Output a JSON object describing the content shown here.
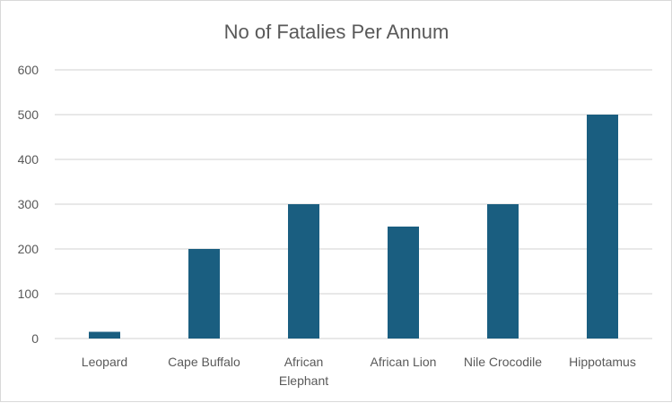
{
  "chart_data": {
    "type": "bar",
    "title": "No of Fatalies Per Annum",
    "xlabel": "",
    "ylabel": "",
    "categories": [
      "Leopard",
      "Cape Buffalo",
      "African Elephant",
      "African Lion",
      "Nile Crocodile",
      "Hippotamus"
    ],
    "category_lines": [
      [
        "Leopard"
      ],
      [
        "Cape Buffalo"
      ],
      [
        "African",
        "Elephant"
      ],
      [
        "African Lion"
      ],
      [
        "Nile Crocodile"
      ],
      [
        "Hippotamus"
      ]
    ],
    "values": [
      15,
      200,
      300,
      250,
      300,
      500
    ],
    "ylim": [
      0,
      600
    ],
    "yticks": [
      0,
      100,
      200,
      300,
      400,
      500,
      600
    ],
    "grid": true,
    "legend": "none",
    "bar_color": "#1a5e80",
    "grid_color": "#d9d9d9"
  }
}
